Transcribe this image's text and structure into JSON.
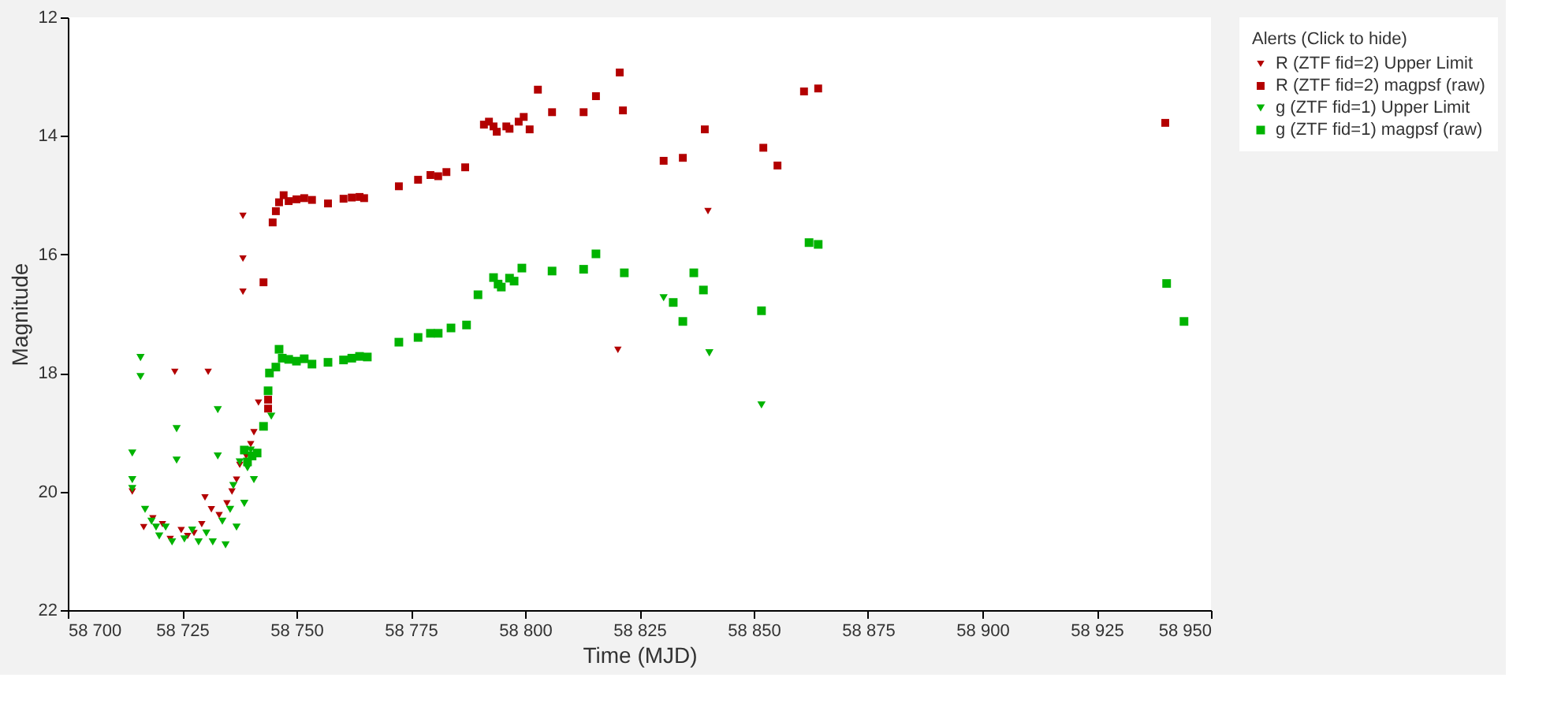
{
  "chart_data": {
    "type": "scatter",
    "xlabel": "Time (MJD)",
    "ylabel": "Magnitude",
    "legend_title": "Alerts (Click to hide)",
    "legend": "top right",
    "grid": false,
    "xlim": [
      58700,
      58950
    ],
    "xticks": [
      {
        "value": 58700,
        "label": "58 700"
      },
      {
        "value": 58725,
        "label": "58 725"
      },
      {
        "value": 58750,
        "label": "58 750"
      },
      {
        "value": 58775,
        "label": "58 775"
      },
      {
        "value": 58800,
        "label": "58 800"
      },
      {
        "value": 58825,
        "label": "58 825"
      },
      {
        "value": 58850,
        "label": "58 850"
      },
      {
        "value": 58875,
        "label": "58 875"
      },
      {
        "value": 58900,
        "label": "58 900"
      },
      {
        "value": 58925,
        "label": "58 925"
      },
      {
        "value": 58950,
        "label": "58 950"
      }
    ],
    "ylim": [
      22,
      12
    ],
    "yticks": [
      12,
      14,
      16,
      18,
      20,
      22
    ],
    "series": [
      {
        "name": "R (ZTF fid=2) Upper Limit",
        "color": "#b30000",
        "marker": "triangle",
        "x": [
          58714.1,
          58716.6,
          58718.6,
          58720.7,
          58722.4,
          58723.4,
          58724.8,
          58726.2,
          58727.6,
          58729.3,
          58730.0,
          58730.7,
          58731.4,
          58733.1,
          58734.8,
          58735.9,
          58736.9,
          58737.6,
          58738.3,
          58738.3,
          58738.3,
          58739.0,
          58740.0,
          58740.7,
          58741.7,
          58820.3,
          58840.0
        ],
        "values": [
          20.0,
          20.6,
          20.45,
          20.55,
          20.8,
          17.98,
          20.65,
          20.75,
          20.7,
          20.55,
          20.1,
          17.98,
          20.3,
          20.4,
          20.2,
          20.0,
          19.8,
          19.55,
          15.35,
          16.07,
          16.63,
          19.4,
          19.2,
          19.0,
          18.5,
          17.61,
          15.27
        ]
      },
      {
        "name": "R (ZTF fid=2) magpsf (raw)",
        "color": "#b30000",
        "marker": "square",
        "x": [
          58742.8,
          58743.8,
          58743.8,
          58744.8,
          58745.5,
          58746.2,
          58747.2,
          58748.3,
          58750.0,
          58751.7,
          58753.4,
          58756.9,
          58760.3,
          58762.1,
          58763.8,
          58764.8,
          58772.4,
          58776.6,
          58779.3,
          58781.0,
          58782.8,
          58786.9,
          58791.0,
          58792.1,
          58793.1,
          58793.8,
          58795.9,
          58796.6,
          58798.6,
          58799.7,
          58801.0,
          58802.8,
          58805.9,
          58812.8,
          58815.5,
          58820.7,
          58821.4,
          58830.3,
          58834.5,
          58839.3,
          58852.1,
          58855.2,
          58861.0,
          58864.1,
          58940.0
        ],
        "values": [
          16.47,
          18.45,
          18.6,
          15.46,
          15.27,
          15.12,
          15.0,
          15.1,
          15.07,
          15.05,
          15.08,
          15.14,
          15.06,
          15.04,
          15.03,
          15.05,
          14.85,
          14.74,
          14.66,
          14.68,
          14.61,
          14.53,
          13.81,
          13.76,
          13.84,
          13.93,
          13.84,
          13.88,
          13.76,
          13.68,
          13.89,
          13.22,
          13.6,
          13.6,
          13.33,
          12.93,
          13.57,
          14.42,
          14.37,
          13.89,
          14.2,
          14.5,
          13.25,
          13.2,
          13.78
        ]
      },
      {
        "name": "g (ZTF fid=1) Upper Limit",
        "color": "#00b300",
        "marker": "triangle",
        "x": [
          58714.1,
          58714.1,
          58714.1,
          58715.9,
          58715.9,
          58716.9,
          58718.3,
          58719.3,
          58720.0,
          58721.4,
          58722.8,
          58723.8,
          58723.8,
          58725.5,
          58727.2,
          58728.6,
          58730.3,
          58731.7,
          58732.8,
          58732.8,
          58733.8,
          58734.5,
          58735.5,
          58736.2,
          58736.9,
          58737.6,
          58738.6,
          58739.3,
          58740.0,
          58740.7,
          58741.7,
          58744.5,
          58830.3,
          58840.3,
          58851.7
        ],
        "values": [
          19.35,
          19.8,
          19.95,
          17.74,
          18.06,
          20.3,
          20.5,
          20.6,
          20.75,
          20.6,
          20.85,
          18.94,
          19.47,
          20.8,
          20.65,
          20.85,
          20.7,
          20.85,
          18.62,
          19.4,
          20.5,
          20.9,
          20.3,
          19.9,
          20.6,
          19.5,
          20.2,
          19.6,
          19.3,
          19.8,
          null,
          18.73,
          16.73,
          17.66,
          18.54
        ]
      },
      {
        "name": "g (ZTF fid=1) magpsf (raw)",
        "color": "#00b300",
        "marker": "square",
        "x": [
          58738.6,
          58739.3,
          58740.3,
          58741.4,
          58742.8,
          58743.8,
          58744.1,
          58745.5,
          58746.2,
          58746.9,
          58748.3,
          58750.0,
          58751.7,
          58753.4,
          58756.9,
          58760.3,
          58762.1,
          58763.8,
          58765.5,
          58772.4,
          58776.6,
          58779.3,
          58781.0,
          58783.8,
          58787.2,
          58789.7,
          58793.1,
          58794.1,
          58794.8,
          58796.6,
          58797.6,
          58799.3,
          58805.9,
          58812.8,
          58815.5,
          58821.7,
          58832.4,
          58834.5,
          58836.9,
          58839.0,
          58851.7,
          58862.1,
          58864.1,
          58940.3,
          58944.1
        ],
        "values": [
          19.3,
          19.5,
          19.4,
          19.35,
          18.9,
          18.3,
          18.0,
          17.9,
          17.6,
          17.75,
          17.77,
          17.8,
          17.76,
          17.85,
          17.82,
          17.78,
          17.75,
          17.72,
          17.73,
          17.48,
          17.4,
          17.33,
          17.33,
          17.24,
          17.19,
          16.68,
          16.39,
          16.5,
          16.55,
          16.4,
          16.45,
          16.23,
          16.28,
          16.25,
          15.99,
          16.31,
          16.81,
          17.13,
          16.31,
          16.6,
          16.95,
          15.8,
          15.83,
          16.49,
          17.13
        ]
      }
    ]
  }
}
